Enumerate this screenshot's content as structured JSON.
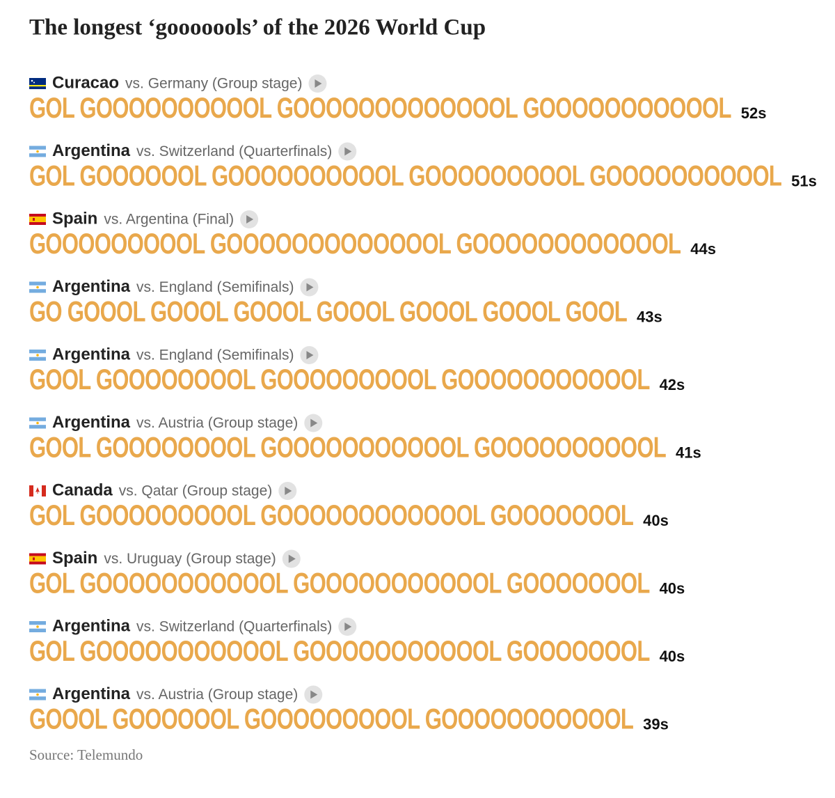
{
  "title": "The longest ‘gooooools’ of the 2026 World Cup",
  "rows": [
    {
      "team": "Curacao",
      "match": "vs. Germany (Group stage)",
      "goal": "GOL GOOOOOOOOOOL GOOOOOOOOOOOOOL GOOOOOOOOOOOL",
      "duration": "52s"
    },
    {
      "team": "Argentina",
      "match": "vs. Switzerland (Quarterfinals)",
      "goal": "GOL GOOOOOOL GOOOOOOOOOOL GOOOOOOOOOL GOOOOOOOOOOL",
      "duration": "51s"
    },
    {
      "team": "Spain",
      "match": "vs. Argentina (Final)",
      "goal": "GOOOOOOOOOL GOOOOOOOOOOOOOL GOOOOOOOOOOOOL",
      "duration": "44s"
    },
    {
      "team": "Argentina",
      "match": "vs. England (Semifinals)",
      "goal": "GO GOOOL GOOOL GOOOL GOOOL GOOOL GOOOL GOOL",
      "duration": "43s"
    },
    {
      "team": "Argentina",
      "match": "vs. England (Semifinals)",
      "goal": "GOOL GOOOOOOOOL GOOOOOOOOOL GOOOOOOOOOOOL",
      "duration": "42s"
    },
    {
      "team": "Argentina",
      "match": "vs. Austria (Group stage)",
      "goal": "GOOL GOOOOOOOOL GOOOOOOOOOOOL GOOOOOOOOOOL",
      "duration": "41s"
    },
    {
      "team": "Canada",
      "match": "vs. Qatar (Group stage)",
      "goal": "GOL GOOOOOOOOOL GOOOOOOOOOOOOL GOOOOOOOL",
      "duration": "40s"
    },
    {
      "team": "Spain",
      "match": "vs. Uruguay (Group stage)",
      "goal": "GOL GOOOOOOOOOOOL GOOOOOOOOOOOL GOOOOOOOL",
      "duration": "40s"
    },
    {
      "team": "Argentina",
      "match": "vs. Switzerland (Quarterfinals)",
      "goal": "GOL GOOOOOOOOOOOL GOOOOOOOOOOOL GOOOOOOOL",
      "duration": "40s"
    },
    {
      "team": "Argentina",
      "match": "vs. Austria (Group stage)",
      "goal": "GOOOL GOOOOOOL GOOOOOOOOOL GOOOOOOOOOOOL",
      "duration": "39s"
    }
  ],
  "source": "Source: Telemundo"
}
